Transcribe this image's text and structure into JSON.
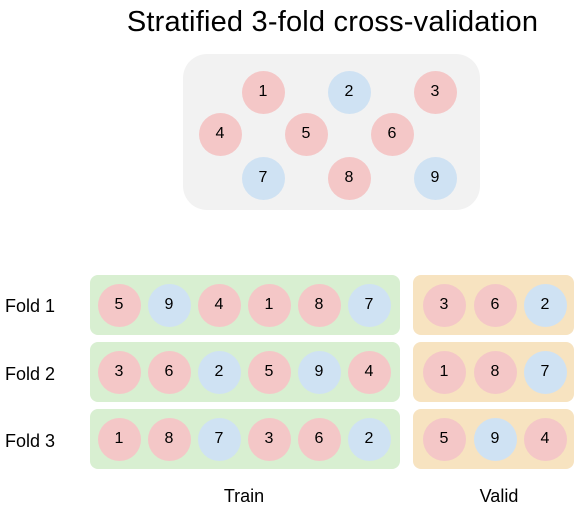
{
  "title": "Stratified 3-fold cross-validation",
  "colors": {
    "pink": "#f4c7c7",
    "blue": "#cfe2f3",
    "train_bg": "#d8efd1",
    "valid_bg": "#f7e3c0",
    "pool_bg": "#f2f2f2"
  },
  "pool": [
    {
      "label": "1",
      "class": "pink"
    },
    {
      "label": "2",
      "class": "blue"
    },
    {
      "label": "3",
      "class": "pink"
    },
    {
      "label": "4",
      "class": "pink"
    },
    {
      "label": "5",
      "class": "pink"
    },
    {
      "label": "6",
      "class": "pink"
    },
    {
      "label": "7",
      "class": "blue"
    },
    {
      "label": "8",
      "class": "pink"
    },
    {
      "label": "9",
      "class": "blue"
    }
  ],
  "folds": [
    {
      "label": "Fold 1",
      "train": [
        {
          "label": "5",
          "class": "pink"
        },
        {
          "label": "9",
          "class": "blue"
        },
        {
          "label": "4",
          "class": "pink"
        },
        {
          "label": "1",
          "class": "pink"
        },
        {
          "label": "8",
          "class": "pink"
        },
        {
          "label": "7",
          "class": "blue"
        }
      ],
      "valid": [
        {
          "label": "3",
          "class": "pink"
        },
        {
          "label": "6",
          "class": "pink"
        },
        {
          "label": "2",
          "class": "blue"
        }
      ]
    },
    {
      "label": "Fold 2",
      "train": [
        {
          "label": "3",
          "class": "pink"
        },
        {
          "label": "6",
          "class": "pink"
        },
        {
          "label": "2",
          "class": "blue"
        },
        {
          "label": "5",
          "class": "pink"
        },
        {
          "label": "9",
          "class": "blue"
        },
        {
          "label": "4",
          "class": "pink"
        }
      ],
      "valid": [
        {
          "label": "1",
          "class": "pink"
        },
        {
          "label": "8",
          "class": "pink"
        },
        {
          "label": "7",
          "class": "blue"
        }
      ]
    },
    {
      "label": "Fold 3",
      "train": [
        {
          "label": "1",
          "class": "pink"
        },
        {
          "label": "8",
          "class": "pink"
        },
        {
          "label": "7",
          "class": "blue"
        },
        {
          "label": "3",
          "class": "pink"
        },
        {
          "label": "6",
          "class": "pink"
        },
        {
          "label": "2",
          "class": "blue"
        }
      ],
      "valid": [
        {
          "label": "5",
          "class": "pink"
        },
        {
          "label": "9",
          "class": "blue"
        },
        {
          "label": "4",
          "class": "pink"
        }
      ]
    }
  ],
  "labels": {
    "train": "Train",
    "valid": "Valid"
  }
}
